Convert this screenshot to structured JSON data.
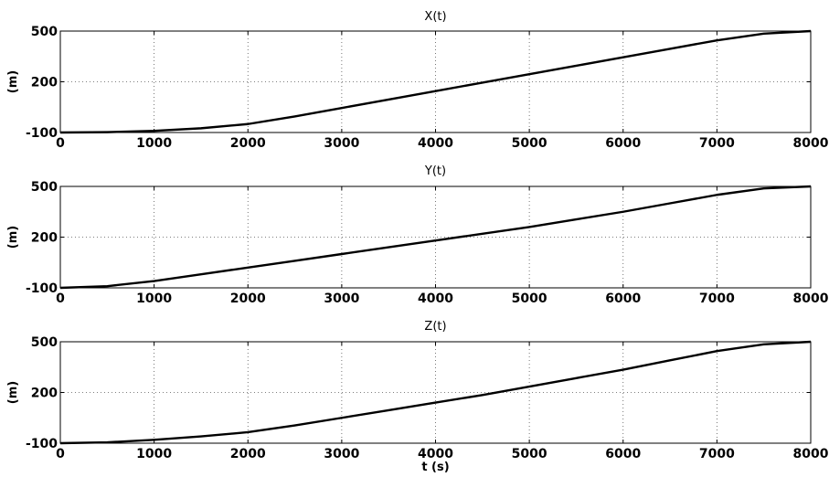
{
  "chart_data": [
    {
      "type": "line",
      "title": "X(t)",
      "xlabel": "",
      "ylabel": "(m)",
      "xlim": [
        0,
        8000
      ],
      "ylim": [
        -100,
        500
      ],
      "xticks": [
        0,
        1000,
        2000,
        3000,
        4000,
        5000,
        6000,
        7000,
        8000
      ],
      "yticks": [
        -100,
        200,
        500
      ],
      "grid": true,
      "x": [
        0,
        500,
        1000,
        1500,
        2000,
        2500,
        3000,
        3500,
        4000,
        4500,
        5000,
        5500,
        6000,
        6500,
        7000,
        7500,
        8000
      ],
      "y": [
        -100,
        -98,
        -90,
        -75,
        -50,
        -5,
        45,
        95,
        145,
        195,
        245,
        295,
        345,
        395,
        445,
        485,
        500
      ]
    },
    {
      "type": "line",
      "title": "Y(t)",
      "xlabel": "",
      "ylabel": "(m)",
      "xlim": [
        0,
        8000
      ],
      "ylim": [
        -100,
        500
      ],
      "xticks": [
        0,
        1000,
        2000,
        3000,
        4000,
        5000,
        6000,
        7000,
        8000
      ],
      "yticks": [
        -100,
        200,
        500
      ],
      "grid": true,
      "x": [
        0,
        500,
        1000,
        1500,
        2000,
        2500,
        3000,
        3500,
        4000,
        4500,
        5000,
        5500,
        6000,
        6500,
        7000,
        7500,
        8000
      ],
      "y": [
        -100,
        -90,
        -60,
        -20,
        20,
        60,
        100,
        140,
        180,
        220,
        260,
        305,
        350,
        400,
        450,
        488,
        500
      ]
    },
    {
      "type": "line",
      "title": "Z(t)",
      "xlabel": "t (s)",
      "ylabel": "(m)",
      "xlim": [
        0,
        8000
      ],
      "ylim": [
        -100,
        500
      ],
      "xticks": [
        0,
        1000,
        2000,
        3000,
        4000,
        5000,
        6000,
        7000,
        8000
      ],
      "yticks": [
        -100,
        200,
        500
      ],
      "grid": true,
      "x": [
        0,
        500,
        1000,
        1500,
        2000,
        2500,
        3000,
        3500,
        4000,
        4500,
        5000,
        5500,
        6000,
        6500,
        7000,
        7500,
        8000
      ],
      "y": [
        -100,
        -95,
        -80,
        -60,
        -35,
        5,
        50,
        95,
        140,
        185,
        235,
        285,
        335,
        390,
        445,
        485,
        500
      ]
    }
  ]
}
